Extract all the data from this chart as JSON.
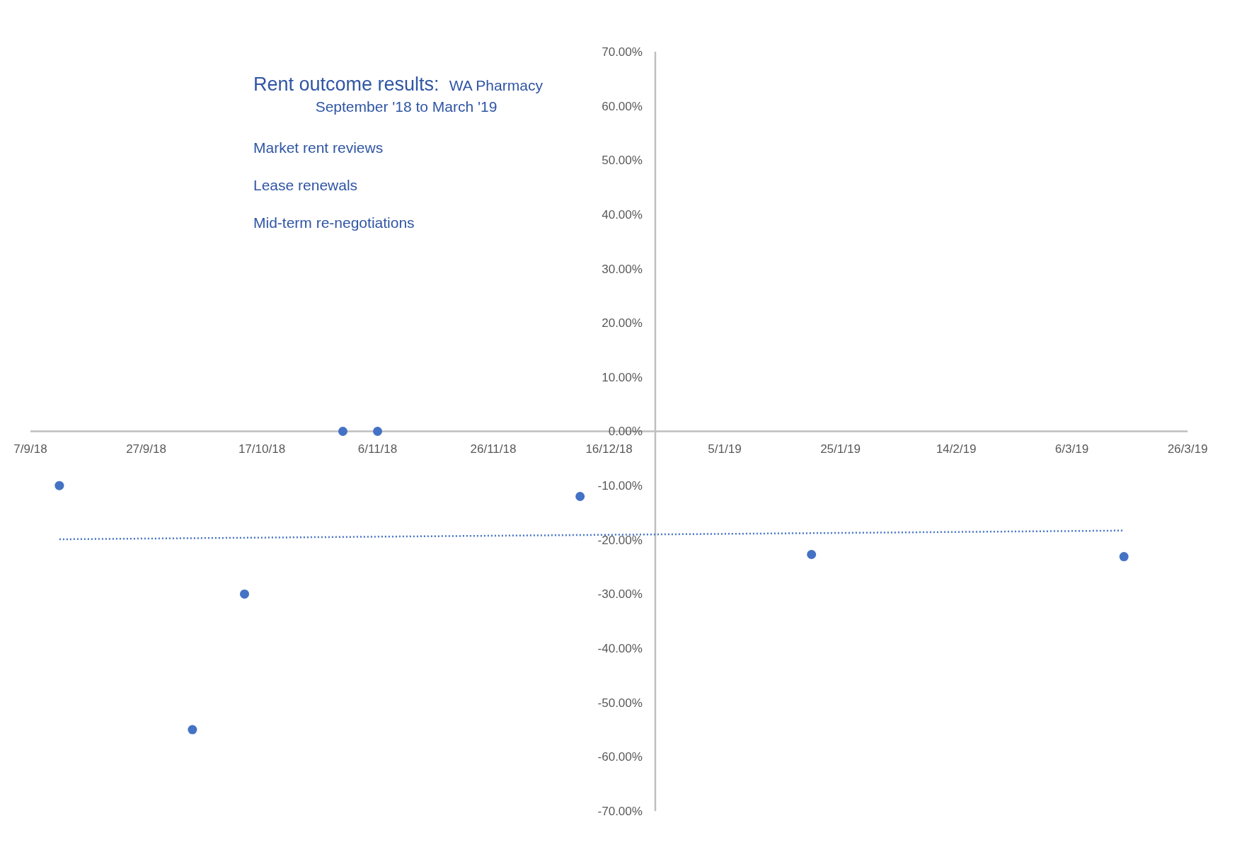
{
  "chart_data": {
    "type": "scatter",
    "title": "Rent outcome results:",
    "subtitle": "WA Pharmacy",
    "annotations": [
      "September '18 to March '19",
      "Market rent reviews",
      "Lease renewals",
      "Mid-term re-negotiations"
    ],
    "series": [
      {
        "color": "#4472c4",
        "marker": "circle",
        "x": [
          "2018-09-12",
          "2018-10-05",
          "2018-10-14",
          "2018-10-31",
          "2018-11-06",
          "2018-12-11",
          "2019-01-20",
          "2019-03-15"
        ],
        "values": [
          -10,
          -55,
          -30,
          0,
          0,
          -12,
          -22.7,
          -23.1
        ]
      },
      {
        "type": "line",
        "color": "#4472c4",
        "line_style": "dotted",
        "x": [
          "2018-09-12",
          "2019-03-15"
        ],
        "values": [
          -19.9,
          -18.3
        ]
      }
    ],
    "xlim": [
      "2018-09-07",
      "2019-03-26"
    ],
    "xticks": [
      {
        "value": "2018-09-07",
        "label": "7/9/18"
      },
      {
        "value": "2018-09-27",
        "label": "27/9/18"
      },
      {
        "value": "2018-10-17",
        "label": "17/10/18"
      },
      {
        "value": "2018-11-06",
        "label": "6/11/18"
      },
      {
        "value": "2018-11-26",
        "label": "26/11/18"
      },
      {
        "value": "2018-12-16",
        "label": "16/12/18"
      },
      {
        "value": "2019-01-05",
        "label": "5/1/19"
      },
      {
        "value": "2019-01-25",
        "label": "25/1/19"
      },
      {
        "value": "2019-02-14",
        "label": "14/2/19"
      },
      {
        "value": "2019-03-06",
        "label": "6/3/19"
      },
      {
        "value": "2019-03-26",
        "label": "26/3/19"
      }
    ],
    "ylim": [
      -70,
      70
    ],
    "yticks": [
      {
        "value": -70,
        "label": "-70.00%"
      },
      {
        "value": -60,
        "label": "-60.00%"
      },
      {
        "value": -50,
        "label": "-50.00%"
      },
      {
        "value": -40,
        "label": "-40.00%"
      },
      {
        "value": -30,
        "label": "-30.00%"
      },
      {
        "value": -20,
        "label": "-20.00%"
      },
      {
        "value": -10,
        "label": "-10.00%"
      },
      {
        "value": 0,
        "label": "0.00%"
      },
      {
        "value": 10,
        "label": "10.00%"
      },
      {
        "value": 20,
        "label": "20.00%"
      },
      {
        "value": 30,
        "label": "30.00%"
      },
      {
        "value": 40,
        "label": "40.00%"
      },
      {
        "value": 50,
        "label": "50.00%"
      },
      {
        "value": 60,
        "label": "60.00%"
      },
      {
        "value": 70,
        "label": "70.00%"
      }
    ],
    "grid": false
  }
}
